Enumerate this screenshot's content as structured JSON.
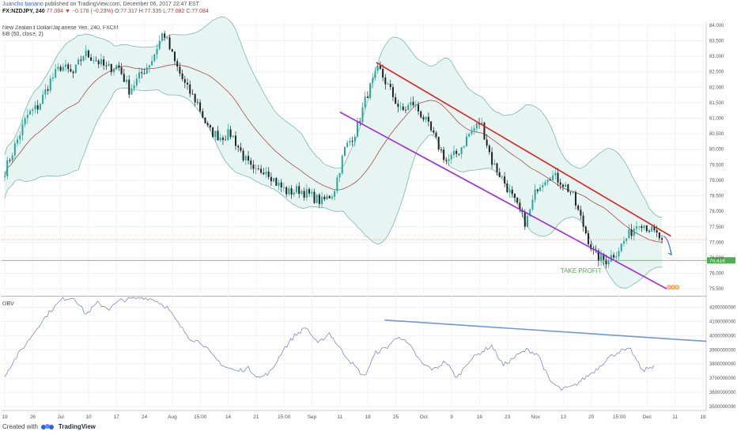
{
  "header": {
    "author": "Juancho banano",
    "published": "published on TradingView.com, December 06, 2017 22:47 EST",
    "symbol": "FX:NZDJPY, 240",
    "last": "77.084",
    "change_arrow": "▼",
    "change": "−0.178 (−0.23%)",
    "o_label": "O:",
    "o": "77.317",
    "h_label": "H:",
    "h": "77.335",
    "l_label": "L:",
    "l": "77.082",
    "c_label": "C:",
    "c": "77.084"
  },
  "legend": {
    "instrument": "New Zealand Dollar/Japanese Yen, 240, FXCM",
    "indicator": "BB (50, close, 2)"
  },
  "obv_legend": "OBV",
  "annotation": {
    "take_profit": "TAKE PROFIT"
  },
  "price_badge": "76.416",
  "footer": {
    "created_with": "Created with",
    "brand": "TradingView"
  },
  "colors": {
    "up_candle": "#26a69a",
    "down_candle": "#222222",
    "bb_fill": "#e6f4f2",
    "bb_band": "#7cb8b0",
    "basis": "#a05050",
    "resistance": "#e31f1f",
    "support": "#9c27e8",
    "obv": "#7878b8",
    "obv_trend": "#6f96dc",
    "take_profit": "#4caf50",
    "arrow": "#3d72c8"
  },
  "chart_data": [
    {
      "type": "candlestick",
      "title": "New Zealand Dollar/Japanese Yen, 240, FXCM",
      "ylim": [
        75.3,
        84.1
      ],
      "yticks": [
        "75.500",
        "76.000",
        "76.500",
        "77.000",
        "77.500",
        "78.000",
        "78.500",
        "79.000",
        "79.500",
        "80.000",
        "80.500",
        "81.000",
        "81.500",
        "82.000",
        "82.500",
        "83.000",
        "83.500",
        "84.000"
      ],
      "xticks": [
        "19",
        "26",
        "Jul",
        "10",
        "17",
        "24",
        "Aug",
        "15:00",
        "14",
        "21",
        "15:00",
        "Sep",
        "11",
        "18",
        "25",
        "Oct",
        "9",
        "16",
        "23",
        "Nov",
        "13",
        "20",
        "15:00",
        "Dec",
        "11",
        "18"
      ],
      "close_path": [
        79.3,
        80.2,
        81.1,
        81.4,
        82.2,
        82.7,
        82.4,
        83.1,
        82.9,
        82.6,
        82.7,
        81.9,
        82.4,
        82.9,
        83.8,
        82.8,
        82.0,
        81.5,
        80.6,
        80.4,
        80.5,
        79.8,
        79.2,
        79.4,
        78.9,
        78.6,
        78.7,
        78.5,
        78.3,
        78.6,
        80.0,
        80.6,
        81.8,
        82.6,
        81.9,
        81.2,
        81.5,
        81.0,
        80.3,
        79.6,
        79.9,
        80.5,
        80.9,
        79.6,
        79.0,
        78.3,
        77.6,
        78.8,
        79.2,
        79.0,
        78.6,
        77.6,
        76.6,
        76.4,
        76.7,
        77.2,
        77.7,
        77.4,
        77.08
      ],
      "candle_count": 260,
      "bb": "Bollinger Bands (50, close, 2): upper/lower band with shaded fill and middle basis line",
      "trendlines": [
        {
          "name": "resistance",
          "from": [
            "Sep 20",
            82.8
          ],
          "to": [
            "Dec 10",
            77.2
          ]
        },
        {
          "name": "support",
          "from": [
            "Sep 11",
            81.2
          ],
          "to": [
            "Dec 08",
            75.5
          ]
        },
        {
          "name": "take-profit",
          "level": 76.416
        },
        {
          "name": "last-price",
          "level": 77.084
        }
      ],
      "annotation": "TAKE PROFIT",
      "last_price": "77.084",
      "take_profit_level": "76.416"
    },
    {
      "type": "line",
      "title": "OBV",
      "ylim": [
        3500000000,
        4270000000
      ],
      "yticks": [
        "3500000000",
        "3600000000",
        "3700000000",
        "3800000000",
        "3900000000",
        "4000000000",
        "4100000000",
        "4200000000"
      ],
      "series": [
        {
          "name": "OBV",
          "values": [
            3720000000,
            3850000000,
            3960000000,
            4080000000,
            4180000000,
            4260000000,
            4270000000,
            4150000000,
            4230000000,
            4190000000,
            4250000000,
            4260000000,
            4270000000,
            4250000000,
            4200000000,
            4080000000,
            3980000000,
            3950000000,
            3850000000,
            3780000000,
            3750000000,
            3770000000,
            3700000000,
            3750000000,
            3900000000,
            4000000000,
            4060000000,
            3940000000,
            4020000000,
            3900000000,
            3800000000,
            3710000000,
            3880000000,
            3920000000,
            4000000000,
            3920000000,
            3800000000,
            3760000000,
            3820000000,
            3700000000,
            3820000000,
            3880000000,
            3930000000,
            3790000000,
            3850000000,
            3900000000,
            3870000000,
            3680000000,
            3620000000,
            3640000000,
            3700000000,
            3760000000,
            3840000000,
            3890000000,
            3900000000,
            3750000000,
            3790000000
          ]
        }
      ],
      "trendline": {
        "from": [
          "Sep 22",
          4110000000
        ],
        "to": [
          "Dec 22",
          3960000000
        ]
      }
    }
  ]
}
